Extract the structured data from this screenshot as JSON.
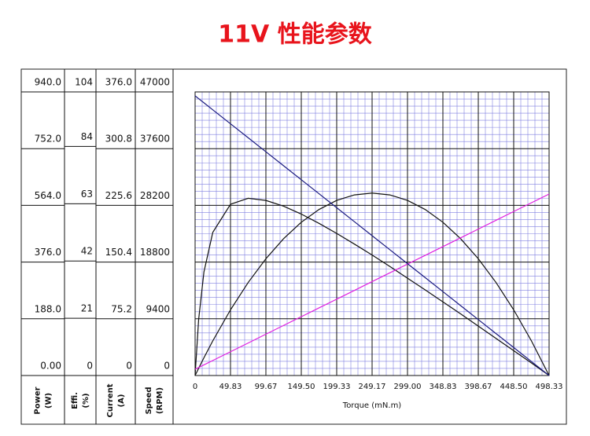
{
  "chart_data": {
    "type": "line",
    "title": "11V 性能参数",
    "x_label": "Torque (mN.m)",
    "x": [
      0,
      4.98,
      12.46,
      24.92,
      49.83,
      74.75,
      99.67,
      124.58,
      149.5,
      174.42,
      199.33,
      224.25,
      249.17,
      274.08,
      299.0,
      323.92,
      348.83,
      373.75,
      398.67,
      423.58,
      448.5,
      473.42,
      498.33
    ],
    "xlim": [
      0,
      498.33
    ],
    "xticks": [
      0,
      49.83,
      99.67,
      {
        "value": 149.5,
        "label": "149.50"
      },
      199.33,
      249.17,
      {
        "value": 299.0,
        "label": "299.00"
      },
      348.83,
      398.67,
      {
        "value": 448.5,
        "label": "448.50"
      },
      498.33
    ],
    "grid": true,
    "series": [
      {
        "axis_label": "Power",
        "axis_unit": "(W)",
        "color": "#111111",
        "values": [
          0,
          23.9,
          59.0,
          114.9,
          217.7,
          308.4,
          387.0,
          453.5,
          508.0,
          550.3,
          580.5,
          598.6,
          604.7,
          598.6,
          580.5,
          550.3,
          508.0,
          453.5,
          387.0,
          308.4,
          217.7,
          114.9,
          0
        ],
        "ylim": [
          0,
          940
        ],
        "yticks": [
          {
            "value": 0,
            "label": "0.00"
          },
          {
            "value": 188,
            "label": "188.0"
          },
          {
            "value": 376,
            "label": "376.0"
          },
          {
            "value": 564,
            "label": "564.0"
          },
          {
            "value": 752,
            "label": "752.0"
          },
          {
            "value": 940,
            "label": "940.0"
          }
        ]
      },
      {
        "axis_label": "Effi.",
        "axis_unit": "(%)",
        "color": "#111111",
        "values": [
          0,
          20.5,
          38.0,
          52.5,
          62.8,
          65.0,
          64.2,
          62.1,
          59.2,
          55.8,
          52.1,
          48.2,
          44.2,
          40.0,
          35.7,
          31.4,
          27.0,
          22.6,
          18.1,
          13.6,
          9.1,
          4.6,
          0
        ],
        "ylim": [
          0,
          104
        ],
        "yticks": [
          0,
          21,
          42,
          63,
          84,
          104
        ]
      },
      {
        "axis_label": "Current",
        "axis_unit": "(A)",
        "color": "#e020e0",
        "values": [
          8.3,
          10.6,
          14.1,
          19.9,
          31.5,
          43.1,
          54.8,
          66.4,
          78.0,
          89.6,
          101.2,
          112.8,
          124.5,
          136.1,
          147.7,
          159.3,
          170.9,
          182.5,
          194.1,
          205.8,
          217.4,
          229.0,
          240.6
        ],
        "ylim": [
          0,
          376
        ],
        "yticks": [
          0,
          75.2,
          150.4,
          225.6,
          300.8,
          {
            "value": 376,
            "label": "376.0"
          }
        ]
      },
      {
        "axis_label": "Speed",
        "axis_unit": "(RPM)",
        "color": "#1a1a80",
        "values": [
          46350,
          45887,
          45191,
          44032,
          41715,
          39398,
          37080,
          34763,
          32445,
          30128,
          27810,
          25493,
          23175,
          20858,
          18540,
          16223,
          13905,
          11588,
          9270,
          6953,
          4635,
          2318,
          0
        ],
        "ylim": [
          0,
          47000
        ],
        "yticks": [
          0,
          9400,
          18800,
          28200,
          37600,
          47000
        ]
      }
    ]
  }
}
